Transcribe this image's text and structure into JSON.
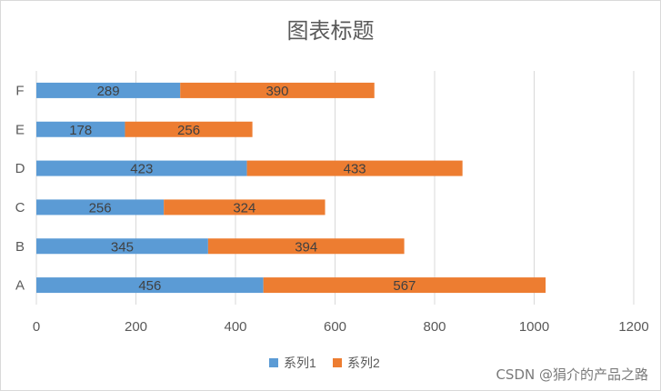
{
  "chart_data": {
    "type": "bar",
    "orientation": "horizontal",
    "stacked": true,
    "title": "图表标题",
    "categories": [
      "A",
      "B",
      "C",
      "D",
      "E",
      "F"
    ],
    "series": [
      {
        "name": "系列1",
        "values": [
          456,
          345,
          256,
          423,
          178,
          289
        ],
        "color": "#5b9bd5"
      },
      {
        "name": "系列2",
        "values": [
          567,
          394,
          324,
          433,
          256,
          390
        ],
        "color": "#ed7d31"
      }
    ],
    "xlim": [
      0,
      1200
    ],
    "xticks": [
      0,
      200,
      400,
      600,
      800,
      1000,
      1200
    ],
    "grid": true,
    "legend": "bottom",
    "data_labels": true
  },
  "watermark": "CSDN @狷介的产品之路"
}
